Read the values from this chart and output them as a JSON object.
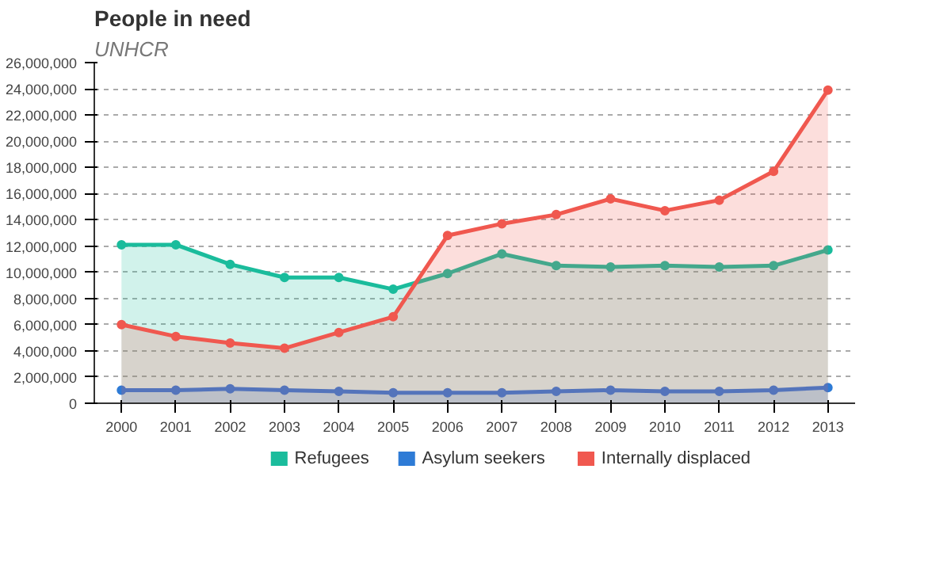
{
  "chart_data": {
    "type": "area",
    "title": "People in need",
    "subtitle": "UNHCR",
    "categories": [
      "2000",
      "2001",
      "2002",
      "2003",
      "2004",
      "2005",
      "2006",
      "2007",
      "2008",
      "2009",
      "2010",
      "2011",
      "2012",
      "2013"
    ],
    "series": [
      {
        "name": "Refugees",
        "color": "#1abc9c",
        "values": [
          12100000,
          12100000,
          10600000,
          9600000,
          9600000,
          8700000,
          9900000,
          11400000,
          10500000,
          10400000,
          10500000,
          10400000,
          10500000,
          11700000
        ]
      },
      {
        "name": "Asylum seekers",
        "color": "#2e7bd6",
        "values": [
          1000000,
          1000000,
          1100000,
          1000000,
          900000,
          800000,
          800000,
          800000,
          900000,
          1000000,
          900000,
          900000,
          1000000,
          1200000
        ]
      },
      {
        "name": "Internally displaced",
        "color": "#f0584f",
        "values": [
          6000000,
          5100000,
          4600000,
          4200000,
          5400000,
          6600000,
          12800000,
          13700000,
          14400000,
          15600000,
          14700000,
          15500000,
          17700000,
          23900000
        ]
      }
    ],
    "ylim": [
      0,
      26000000
    ],
    "yticks": [
      {
        "value": 0,
        "label": "0"
      },
      {
        "value": 2000000,
        "label": "2,000,000"
      },
      {
        "value": 4000000,
        "label": "4,000,000"
      },
      {
        "value": 6000000,
        "label": "6,000,000"
      },
      {
        "value": 8000000,
        "label": "8,000,000"
      },
      {
        "value": 10000000,
        "label": "10,000,000"
      },
      {
        "value": 12000000,
        "label": "12,000,000"
      },
      {
        "value": 14000000,
        "label": "14,000,000"
      },
      {
        "value": 16000000,
        "label": "16,000,000"
      },
      {
        "value": 18000000,
        "label": "18,000,000"
      },
      {
        "value": 20000000,
        "label": "20,000,000"
      },
      {
        "value": 22000000,
        "label": "22,000,000"
      },
      {
        "value": 24000000,
        "label": "24,000,000"
      },
      {
        "value": 26000000,
        "label": "26,000,000"
      }
    ],
    "grid": "y",
    "legend": "bottom",
    "marker": "circle",
    "line_style": "solid"
  }
}
